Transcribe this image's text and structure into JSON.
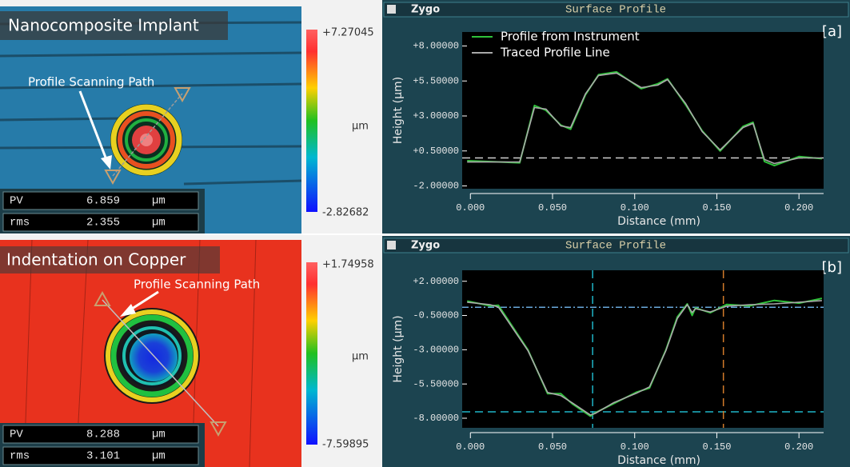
{
  "chart_data": [
    {
      "type": "line",
      "header_logo": "Zygo",
      "title": "Surface Profile",
      "panel_tag": "[a]",
      "y_label": "Height (µm)",
      "x_label": "Distance (mm)",
      "xlim": [
        -0.005,
        0.215
      ],
      "ylim": [
        -2.2,
        9.0
      ],
      "xticks": [
        {
          "value": 0,
          "label": "0.000"
        },
        {
          "value": 0.05,
          "label": "0.050"
        },
        {
          "value": 0.1,
          "label": "0.100"
        },
        {
          "value": 0.15,
          "label": "0.150"
        },
        {
          "value": 0.2,
          "label": "0.200"
        }
      ],
      "yticks": [
        {
          "value": 8,
          "label": "+8.00000"
        },
        {
          "value": 5.5,
          "label": "+5.50000"
        },
        {
          "value": 3,
          "label": "+3.00000"
        },
        {
          "value": 0.5,
          "label": "+0.50000"
        },
        {
          "value": -2,
          "label": "-2.00000"
        }
      ],
      "legend": "top-left",
      "x": [
        -0.002,
        0.03,
        0.039,
        0.046,
        0.055,
        0.061,
        0.07,
        0.078,
        0.089,
        0.104,
        0.114,
        0.12,
        0.131,
        0.141,
        0.152,
        0.166,
        0.172,
        0.179,
        0.185,
        0.2,
        0.214
      ],
      "series": [
        {
          "name": "Profile from Instrument",
          "color": "#2fc23a",
          "values": [
            -0.2,
            -0.35,
            3.75,
            3.4,
            2.35,
            2.05,
            4.5,
            5.95,
            6.15,
            4.95,
            5.3,
            5.65,
            3.8,
            1.95,
            0.5,
            2.25,
            2.55,
            -0.25,
            -0.55,
            0.1,
            -0.05
          ]
        },
        {
          "name": "Traced Profile Line",
          "color": "#a9a9a9",
          "values": [
            -0.29,
            -0.29,
            3.6,
            3.49,
            2.29,
            2.17,
            4.57,
            5.89,
            6.06,
            5.03,
            5.2,
            5.6,
            3.89,
            1.89,
            0.57,
            2.17,
            2.46,
            -0.11,
            -0.4,
            0.0,
            0.0
          ]
        }
      ],
      "reference_lines": [
        {
          "axis": "y",
          "value": 0,
          "color": "#cfcfcf",
          "dash": "dashed"
        }
      ]
    },
    {
      "type": "line",
      "header_logo": "Zygo",
      "title": "Surface Profile",
      "panel_tag": "[b]",
      "y_label": "Height (µm)",
      "x_label": "Distance (mm)",
      "xlim": [
        -0.005,
        0.215
      ],
      "ylim": [
        -8.7,
        2.8
      ],
      "xticks": [
        {
          "value": 0,
          "label": "0.000"
        },
        {
          "value": 0.05,
          "label": "0.050"
        },
        {
          "value": 0.1,
          "label": "0.100"
        },
        {
          "value": 0.15,
          "label": "0.150"
        },
        {
          "value": 0.2,
          "label": "0.200"
        }
      ],
      "yticks": [
        {
          "value": 2,
          "label": "+2.00000"
        },
        {
          "value": -0.5,
          "label": "-0.50000"
        },
        {
          "value": -3,
          "label": "-3.00000"
        },
        {
          "value": -5.5,
          "label": "-5.50000"
        },
        {
          "value": -8,
          "label": "-8.00000"
        }
      ],
      "x": [
        -0.002,
        0.012,
        0.017,
        0.035,
        0.047,
        0.055,
        0.062,
        0.073,
        0.076,
        0.087,
        0.101,
        0.109,
        0.119,
        0.126,
        0.132,
        0.135,
        0.137,
        0.146,
        0.156,
        0.17,
        0.185,
        0.2,
        0.214
      ],
      "series": [
        {
          "color": "#2fc23a",
          "values": [
            0.55,
            0.2,
            0.25,
            -3.0,
            -6.2,
            -6.2,
            -6.95,
            -7.85,
            -7.6,
            -6.95,
            -6.1,
            -5.8,
            -3.0,
            -0.6,
            0.35,
            -0.5,
            0.05,
            -0.3,
            0.3,
            0.2,
            0.6,
            0.4,
            0.75
          ]
        },
        {
          "color": "#a9a9a9",
          "values": [
            0.47,
            0.29,
            0.12,
            -3.06,
            -6.12,
            -6.35,
            -6.88,
            -7.76,
            -7.65,
            -6.88,
            -6.18,
            -5.71,
            -3.06,
            -0.71,
            0.29,
            -0.29,
            0.0,
            -0.24,
            0.18,
            0.29,
            0.35,
            0.47,
            0.59
          ]
        }
      ],
      "reference_lines": [
        {
          "axis": "y",
          "value": 0.1,
          "color": "#6aa9dc",
          "dash": "dashdot"
        },
        {
          "axis": "y",
          "value": -7.53,
          "color": "#1fb5c8",
          "dash": "dashed"
        },
        {
          "axis": "x",
          "value": 0.0744,
          "color": "#1fb5c8",
          "dash": "dashed"
        },
        {
          "axis": "x",
          "value": 0.154,
          "color": "#d27a2a",
          "dash": "dashed"
        }
      ]
    }
  ],
  "maps": [
    {
      "title": "Nanocomposite Implant",
      "annotation": "Profile Scanning Path",
      "colorbar": {
        "max": "+7.27045",
        "unit": "µm",
        "min": "-2.82682"
      },
      "stats": [
        {
          "name": "PV",
          "value": "6.859",
          "unit": "µm"
        },
        {
          "name": "rms",
          "value": "2.355",
          "unit": "µm"
        }
      ]
    },
    {
      "title": "Indentation on Copper",
      "annotation": "Profile Scanning Path",
      "colorbar": {
        "max": "+1.74958",
        "unit": "µm",
        "min": "-7.59895"
      },
      "stats": [
        {
          "name": "PV",
          "value": "8.288",
          "unit": "µm"
        },
        {
          "name": "rms",
          "value": "3.101",
          "unit": "µm"
        }
      ]
    }
  ]
}
